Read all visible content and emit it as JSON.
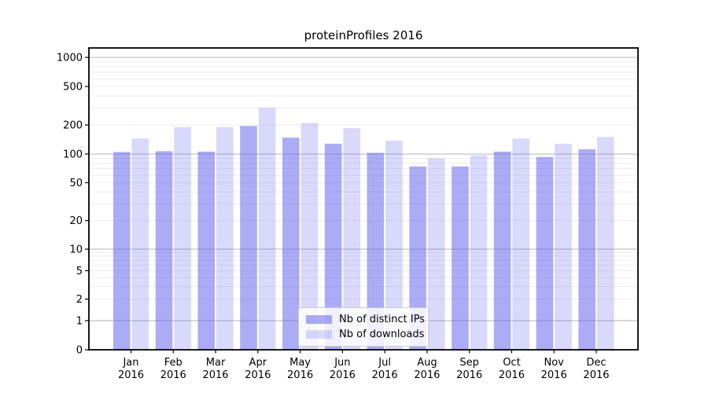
{
  "page": {
    "background": "#ffffff"
  },
  "chart_data": {
    "type": "bar",
    "title": "proteinProfiles 2016",
    "categories": [
      "Jan",
      "Feb",
      "Mar",
      "Apr",
      "May",
      "Jun",
      "Jul",
      "Aug",
      "Sep",
      "Oct",
      "Nov",
      "Dec"
    ],
    "category_year": "2016",
    "series": [
      {
        "name": "Nb of distinct IPs",
        "color": "rgba(102,102,238,0.55)",
        "values": [
          105,
          107,
          106,
          195,
          148,
          128,
          103,
          74,
          74,
          106,
          93,
          112
        ]
      },
      {
        "name": "Nb of downloads",
        "color": "rgba(102,102,238,0.25)",
        "values": [
          145,
          190,
          190,
          300,
          210,
          185,
          138,
          90,
          97,
          145,
          128,
          150
        ]
      }
    ],
    "xlabel": "",
    "ylabel": "",
    "yscale": "symlog",
    "yticks": [
      0,
      1,
      2,
      5,
      10,
      20,
      50,
      100,
      200,
      500,
      1000
    ],
    "ylim": [
      0,
      1250
    ],
    "grid": true,
    "legend_position": "lower center",
    "colors": {
      "major_grid": "#b3b3b3",
      "minor_grid": "#ebebeb",
      "axis": "#000000",
      "text": "#000000"
    }
  }
}
